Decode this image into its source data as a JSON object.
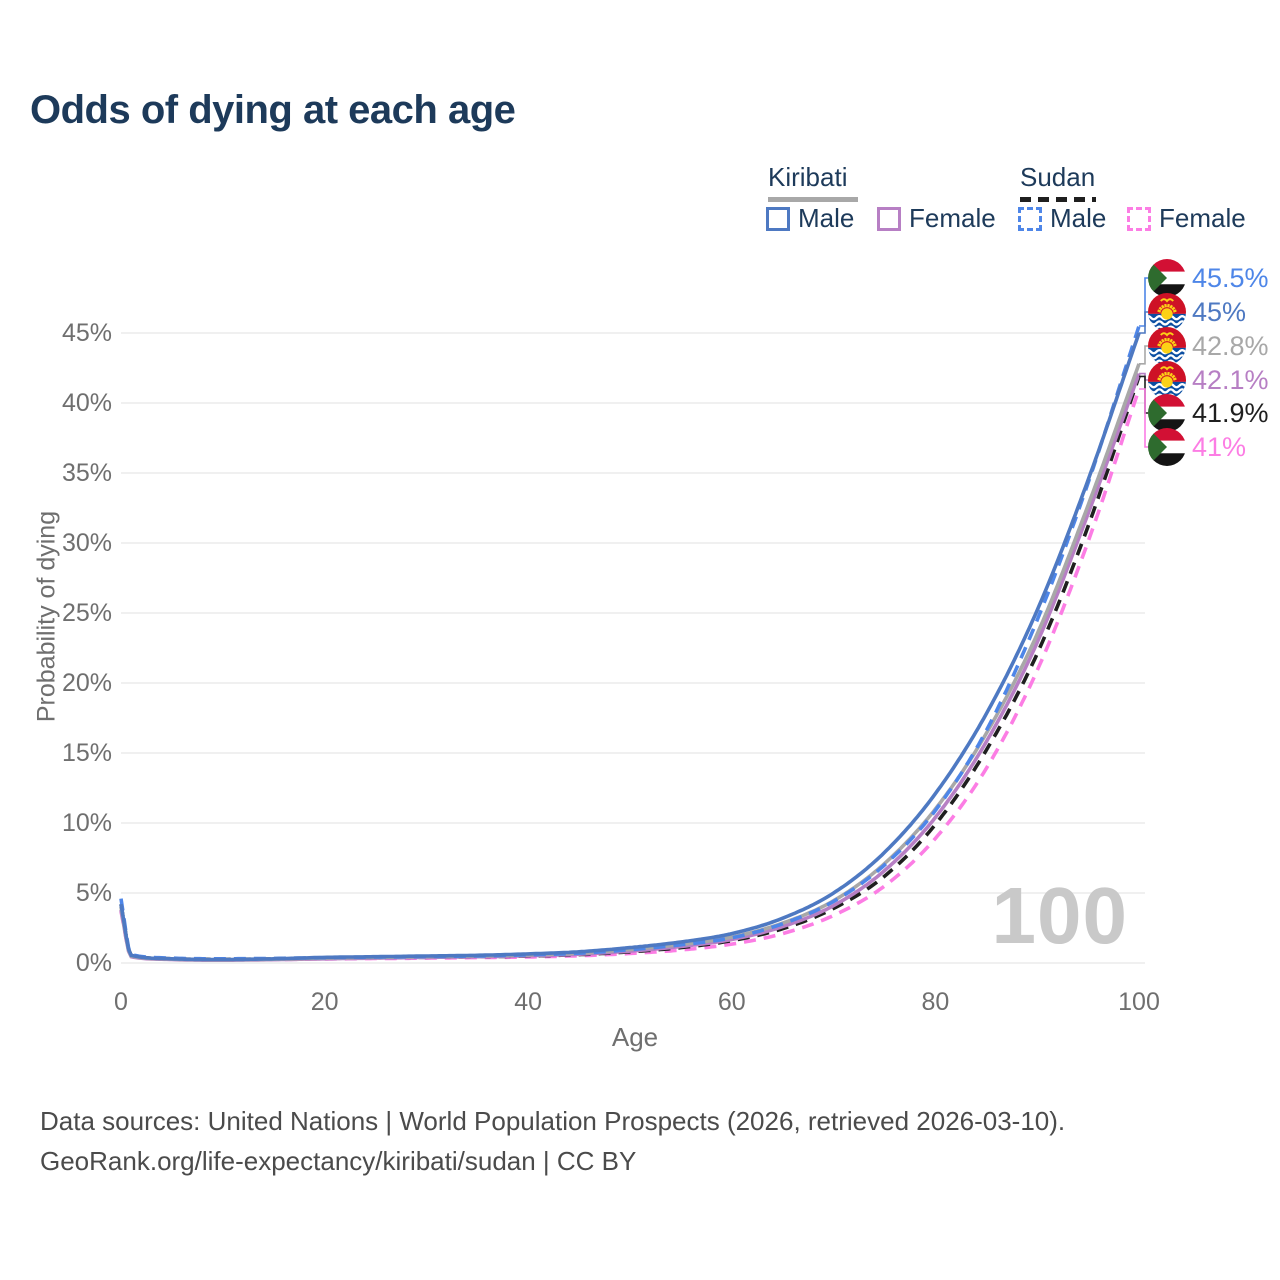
{
  "title": "Odds of dying at each age",
  "legend": {
    "groups": [
      {
        "name": "Kiribati",
        "line_style": "solid",
        "line_color": "#a8a8a8",
        "items": [
          {
            "label": "Male",
            "color": "#4e79c2",
            "style": "solid"
          },
          {
            "label": "Female",
            "color": "#b77fc4",
            "style": "solid"
          }
        ]
      },
      {
        "name": "Sudan",
        "line_style": "dashed",
        "line_color": "#1f1f1f",
        "items": [
          {
            "label": "Male",
            "color": "#4e86e8",
            "style": "dashed"
          },
          {
            "label": "Female",
            "color": "#fc7de4",
            "style": "dashed"
          }
        ]
      }
    ]
  },
  "chart_data": {
    "type": "line",
    "title": "Odds of dying at each age",
    "xlabel": "Age",
    "ylabel": "Probability of dying",
    "xlim": [
      0,
      100
    ],
    "ylim_percent": [
      0,
      47
    ],
    "x_ticks": [
      0,
      20,
      40,
      60,
      80,
      100
    ],
    "y_ticks": [
      {
        "v": 0,
        "label": "0%"
      },
      {
        "v": 5,
        "label": "5%"
      },
      {
        "v": 10,
        "label": "10%"
      },
      {
        "v": 15,
        "label": "15%"
      },
      {
        "v": 20,
        "label": "20%"
      },
      {
        "v": 25,
        "label": "25%"
      },
      {
        "v": 30,
        "label": "30%"
      },
      {
        "v": 35,
        "label": "35%"
      },
      {
        "v": 40,
        "label": "40%"
      },
      {
        "v": 45,
        "label": "45%"
      }
    ],
    "grid": true,
    "x": [
      0,
      1,
      5,
      10,
      15,
      20,
      25,
      30,
      35,
      40,
      45,
      50,
      55,
      60,
      65,
      70,
      75,
      80,
      85,
      90,
      95,
      100
    ],
    "series": [
      {
        "name": "Sudan Male",
        "country": "sudan",
        "sex": "male",
        "color": "#4e86e8",
        "dashed": true,
        "values": [
          4.6,
          0.6,
          0.35,
          0.3,
          0.33,
          0.38,
          0.42,
          0.46,
          0.5,
          0.58,
          0.7,
          0.95,
          1.3,
          1.8,
          2.8,
          4.4,
          7.0,
          10.9,
          16.6,
          24.5,
          34.3,
          45.5
        ],
        "end_label": "45.5%"
      },
      {
        "name": "Kiribati Male",
        "country": "kiribati",
        "sex": "male",
        "color": "#4e79c2",
        "dashed": false,
        "values": [
          4.2,
          0.55,
          0.3,
          0.25,
          0.3,
          0.4,
          0.45,
          0.5,
          0.55,
          0.65,
          0.8,
          1.1,
          1.5,
          2.1,
          3.2,
          5.0,
          7.9,
          12.1,
          17.8,
          25.2,
          34.5,
          45.0
        ],
        "end_label": "45%"
      },
      {
        "name": "Kiribati",
        "country": "kiribati",
        "sex": "both",
        "color": "#a8a8a8",
        "dashed": false,
        "values": [
          4.0,
          0.5,
          0.28,
          0.23,
          0.27,
          0.35,
          0.4,
          0.45,
          0.5,
          0.58,
          0.7,
          0.97,
          1.32,
          1.85,
          2.85,
          4.45,
          7.1,
          11.0,
          16.4,
          23.5,
          32.7,
          42.8
        ],
        "end_label": "42.8%"
      },
      {
        "name": "Kiribati Female",
        "country": "kiribati",
        "sex": "female",
        "color": "#b77fc4",
        "dashed": false,
        "values": [
          3.8,
          0.45,
          0.25,
          0.2,
          0.24,
          0.3,
          0.35,
          0.4,
          0.45,
          0.52,
          0.63,
          0.85,
          1.18,
          1.68,
          2.6,
          4.1,
          6.6,
          10.4,
          15.8,
          22.9,
          32.1,
          42.1
        ],
        "end_label": "42.1%"
      },
      {
        "name": "Sudan",
        "country": "sudan",
        "sex": "both",
        "color": "#1f1f1f",
        "dashed": true,
        "values": [
          4.2,
          0.55,
          0.3,
          0.26,
          0.29,
          0.33,
          0.37,
          0.41,
          0.45,
          0.5,
          0.6,
          0.8,
          1.1,
          1.6,
          2.45,
          3.9,
          6.2,
          9.9,
          15.2,
          22.1,
          31.2,
          41.9
        ],
        "end_label": "41.9%"
      },
      {
        "name": "Sudan Female",
        "country": "sudan",
        "sex": "female",
        "color": "#fc7de4",
        "dashed": true,
        "values": [
          3.7,
          0.5,
          0.27,
          0.23,
          0.25,
          0.29,
          0.32,
          0.35,
          0.39,
          0.43,
          0.52,
          0.68,
          0.93,
          1.35,
          2.1,
          3.4,
          5.5,
          8.9,
          13.9,
          20.9,
          30.1,
          41.0
        ],
        "end_label": "41%"
      }
    ],
    "legend_position": "top-right"
  },
  "end_labels": [
    {
      "value": "45.5%",
      "flag": "sudan-flag",
      "color": "#4e86e8"
    },
    {
      "value": "45%",
      "flag": "kiribati-flag",
      "color": "#4e79c2"
    },
    {
      "value": "42.8%",
      "flag": "kiribati-flag",
      "color": "#a8a8a8"
    },
    {
      "value": "42.1%",
      "flag": "kiribati-flag",
      "color": "#b77fc4"
    },
    {
      "value": "41.9%",
      "flag": "sudan-flag",
      "color": "#1f1f1f"
    },
    {
      "value": "41%",
      "flag": "sudan-flag",
      "color": "#fc7de4"
    }
  ],
  "watermark": "100",
  "footer": {
    "line1": "Data sources: United Nations | World Population Prospects (2026, retrieved 2026-03-10).",
    "line2": "GeoRank.org/life-expectancy/kiribati/sudan | CC BY"
  }
}
